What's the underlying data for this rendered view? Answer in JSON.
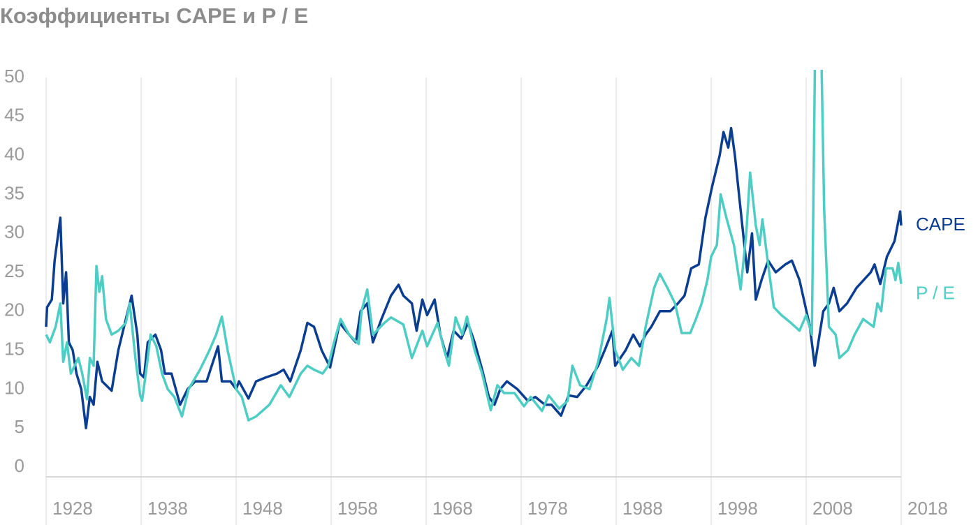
{
  "chart_data": {
    "type": "line",
    "title": "Коэффициенты CAPE и P / E",
    "xlim": [
      1928,
      2018
    ],
    "xticks": [
      1928,
      1938,
      1948,
      1958,
      1968,
      1978,
      1988,
      1998,
      2008,
      2018
    ],
    "ylim": [
      0,
      50
    ],
    "yticks": [
      0,
      5,
      10,
      15,
      20,
      25,
      30,
      35,
      40,
      45,
      50
    ],
    "series": [
      {
        "name": "CAPE",
        "color": "#0b3d91",
        "x": [
          1928.0,
          1928.1,
          1928.6,
          1928.9,
          1929.5,
          1929.8,
          1930.1,
          1930.4,
          1930.8,
          1931.2,
          1931.7,
          1932.2,
          1932.6,
          1933.0,
          1933.4,
          1933.9,
          1934.9,
          1935.6,
          1936.4,
          1937.0,
          1937.6,
          1937.9,
          1938.3,
          1938.7,
          1939.5,
          1940.1,
          1940.5,
          1941.2,
          1942.1,
          1942.9,
          1943.7,
          1944.9,
          1946.1,
          1946.5,
          1947.4,
          1948.0,
          1948.3,
          1949.3,
          1950.1,
          1951.1,
          1952.3,
          1953.0,
          1953.7,
          1954.8,
          1955.5,
          1956.2,
          1957.0,
          1957.9,
          1958.9,
          1959.9,
          1960.6,
          1961.1,
          1961.8,
          1962.4,
          1963.3,
          1964.3,
          1965.1,
          1965.6,
          1966.5,
          1967.0,
          1967.6,
          1968.1,
          1968.9,
          1969.5,
          1970.2,
          1970.9,
          1971.7,
          1972.4,
          1973.1,
          1973.9,
          1974.6,
          1975.2,
          1975.8,
          1976.5,
          1977.6,
          1978.7,
          1979.5,
          1980.5,
          1981.2,
          1982.2,
          1983.0,
          1983.9,
          1984.9,
          1986.1,
          1986.8,
          1987.6,
          1987.9,
          1989.0,
          1989.8,
          1990.5,
          1991.1,
          1991.7,
          1992.6,
          1993.7,
          1994.5,
          1995.2,
          1995.9,
          1996.7,
          1997.4,
          1998.1,
          1998.9,
          1999.3,
          1999.8,
          2000.1,
          2000.5,
          2001.1,
          2001.8,
          2002.3,
          2002.7,
          2003.3,
          2004.0,
          2004.8,
          2005.8,
          2006.5,
          2007.3,
          2008.4,
          2008.9,
          2009.8,
          2010.4,
          2010.9,
          2011.5,
          2012.3,
          2013.3,
          2014.8,
          2015.2,
          2015.8,
          2016.5,
          2017.3,
          2017.9,
          2018.0
        ],
        "values": [
          18,
          20.5,
          21.5,
          26.5,
          32,
          21,
          25,
          16,
          15,
          12,
          10,
          5,
          9,
          8,
          13.5,
          11,
          9.8,
          15,
          19,
          22,
          17,
          12,
          11.5,
          16,
          17,
          15,
          12,
          12,
          8,
          10,
          11,
          11,
          15.5,
          11,
          11,
          10,
          11,
          8.8,
          11,
          11.5,
          12,
          12.5,
          11,
          15,
          18.5,
          18,
          15,
          12.8,
          18.5,
          17,
          16,
          20,
          21,
          16,
          19,
          22,
          23.4,
          22,
          21,
          17.5,
          21.5,
          19.5,
          21.5,
          17,
          14,
          17.5,
          16.5,
          18.5,
          16,
          12.5,
          9,
          8,
          10,
          11,
          10,
          8.5,
          9,
          8,
          8,
          6.6,
          9.2,
          9,
          10.5,
          13,
          15,
          17.5,
          13,
          15,
          17,
          15.5,
          17,
          18,
          20,
          20,
          21,
          22,
          25.5,
          26,
          32,
          36,
          40,
          43,
          41,
          43.5,
          40,
          33,
          25,
          30,
          21.5,
          24,
          26.5,
          25,
          26,
          26.5,
          24,
          18,
          13,
          20,
          21,
          23,
          20,
          21,
          23,
          25,
          26,
          23.5,
          27,
          29,
          32.8,
          31
        ]
      },
      {
        "name": "P / E",
        "color": "#4ecdc4",
        "x": [
          1928.0,
          1928.4,
          1929.0,
          1929.5,
          1929.8,
          1930.2,
          1930.6,
          1931.4,
          1931.8,
          1932.3,
          1932.6,
          1933.0,
          1933.3,
          1933.6,
          1933.9,
          1934.3,
          1934.9,
          1935.6,
          1936.4,
          1936.8,
          1937.4,
          1937.9,
          1938.1,
          1938.6,
          1939.0,
          1939.6,
          1940.2,
          1940.8,
          1941.5,
          1942.3,
          1943.0,
          1944.2,
          1945.2,
          1945.9,
          1946.5,
          1947.1,
          1948.0,
          1948.6,
          1949.3,
          1950.1,
          1951.5,
          1952.7,
          1953.6,
          1954.8,
          1955.5,
          1956.2,
          1957.1,
          1957.7,
          1958.3,
          1959.0,
          1959.9,
          1960.9,
          1961.2,
          1961.8,
          1962.4,
          1963.6,
          1964.3,
          1965.6,
          1966.5,
          1967.6,
          1968.1,
          1969.2,
          1969.9,
          1970.4,
          1971.1,
          1971.8,
          1972.3,
          1973.1,
          1973.9,
          1974.8,
          1975.5,
          1976.2,
          1977.3,
          1978.3,
          1979.0,
          1980.2,
          1980.9,
          1982.0,
          1982.9,
          1983.4,
          1984.2,
          1985.2,
          1986.1,
          1987.0,
          1987.3,
          1987.9,
          1988.7,
          1989.6,
          1990.4,
          1991.1,
          1992.0,
          1992.6,
          1993.4,
          1994.2,
          1994.9,
          1995.8,
          1996.4,
          1997.0,
          1997.6,
          1998.0,
          1998.6,
          1999.0,
          1999.6,
          2000.4,
          2001.1,
          2001.7,
          2002.1,
          2002.7,
          2003.1,
          2003.4,
          2004.0,
          2004.6,
          2005.4,
          2006.4,
          2007.3,
          2008.0,
          2008.6,
          2009.0,
          2009.5,
          2009.9,
          2010.4,
          2011.1,
          2011.5,
          2012.4,
          2013.1,
          2014.0,
          2015.1,
          2015.5,
          2015.9,
          2016.4,
          2017.1,
          2017.4,
          2017.7,
          2018.0
        ],
        "values": [
          17,
          16,
          18,
          21,
          13.5,
          16,
          12,
          14,
          12,
          8.7,
          14,
          13,
          25.8,
          22.5,
          24.5,
          19,
          17,
          17.5,
          18.5,
          21,
          14,
          9.2,
          8.5,
          13,
          17,
          15.5,
          12,
          10,
          9,
          6.5,
          10,
          12.5,
          15,
          17,
          19.3,
          15,
          10,
          9,
          6,
          6.5,
          8,
          10.5,
          9,
          12,
          13,
          12.5,
          12,
          13,
          16,
          19,
          17,
          15.8,
          20,
          22.8,
          17,
          18.5,
          19.2,
          18.3,
          14,
          17.5,
          15.5,
          18.5,
          15,
          13,
          19.2,
          17,
          19.3,
          15,
          12,
          7.3,
          10.5,
          9.5,
          9.5,
          7.8,
          9,
          7.2,
          9.2,
          7.5,
          8.5,
          13,
          10.5,
          10,
          13.5,
          19,
          21.7,
          15,
          12.5,
          14,
          13,
          18,
          23,
          24.8,
          23,
          21,
          17.2,
          17.2,
          19,
          21,
          24,
          27,
          28.5,
          35,
          32,
          28.5,
          22.8,
          30,
          37.8,
          31,
          28.5,
          31.8,
          26,
          20.5,
          19.5,
          18.5,
          17.5,
          19.5,
          17,
          60,
          60,
          33,
          18,
          17,
          14,
          15,
          17,
          19,
          18,
          21,
          20,
          25.5,
          25.5,
          24,
          26.2,
          23.5
        ]
      }
    ]
  }
}
